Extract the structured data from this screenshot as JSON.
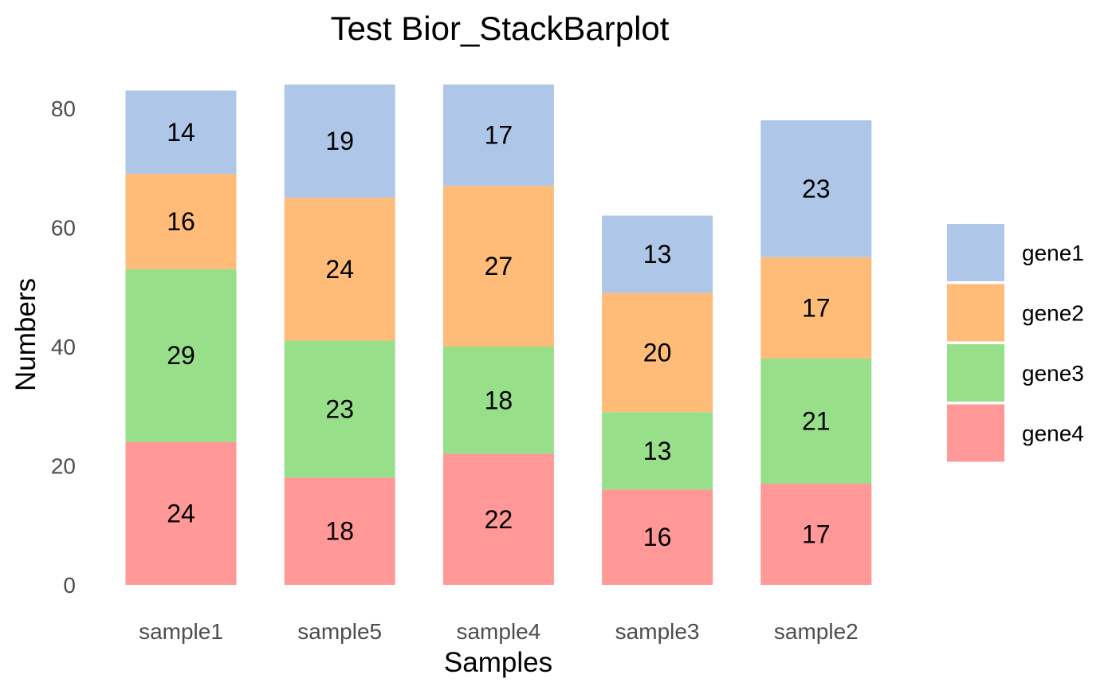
{
  "chart_data": {
    "type": "bar",
    "stacked": true,
    "title": "Test Bior_StackBarplot",
    "xlabel": "Samples",
    "ylabel": "Numbers",
    "ylim": [
      0,
      84
    ],
    "yticks": [
      0,
      20,
      40,
      60,
      80
    ],
    "grid": false,
    "legend_position": "right",
    "categories": [
      "sample1",
      "sample5",
      "sample4",
      "sample3",
      "sample2"
    ],
    "series": [
      {
        "name": "gene4",
        "color": "#ff9896",
        "values": [
          24,
          18,
          22,
          16,
          17
        ]
      },
      {
        "name": "gene3",
        "color": "#98df8a",
        "values": [
          29,
          23,
          18,
          13,
          21
        ]
      },
      {
        "name": "gene2",
        "color": "#ffbb78",
        "values": [
          16,
          24,
          27,
          20,
          17
        ]
      },
      {
        "name": "gene1",
        "color": "#aec7e8",
        "values": [
          14,
          19,
          17,
          13,
          23
        ]
      }
    ],
    "legend_order": [
      "gene1",
      "gene2",
      "gene3",
      "gene4"
    ]
  }
}
